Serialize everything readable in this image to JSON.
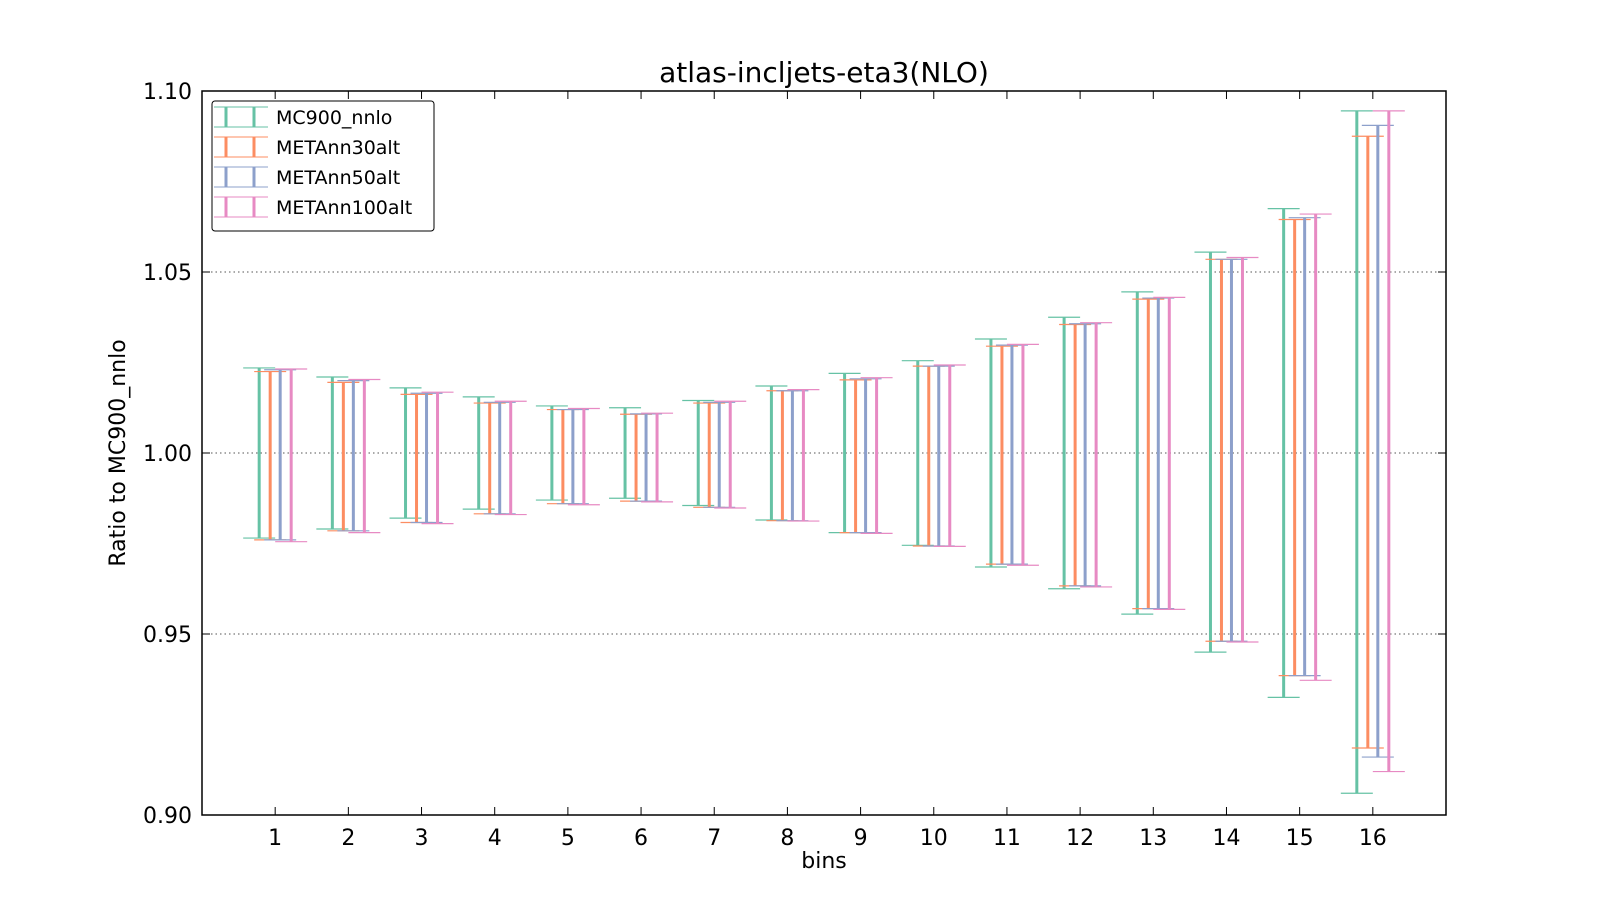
{
  "chart_data": {
    "type": "errorbar",
    "title": "atlas-incljets-eta3(NLO)",
    "xlabel": "bins",
    "ylabel": "Ratio to MC900_nnlo",
    "ylim": [
      0.9,
      1.1
    ],
    "yticks": [
      "0.90",
      "0.95",
      "1.00",
      "1.05",
      "1.10"
    ],
    "categories": [
      "1",
      "2",
      "3",
      "4",
      "5",
      "6",
      "7",
      "8",
      "9",
      "10",
      "11",
      "12",
      "13",
      "14",
      "15",
      "16"
    ],
    "grid": "horizontal dotted",
    "legend_position": "top-left",
    "series": [
      {
        "name": "MC900_nnlo",
        "color": "#66c2a5",
        "lower": [
          0.9765,
          0.979,
          0.982,
          0.9845,
          0.987,
          0.9875,
          0.9855,
          0.9815,
          0.978,
          0.9745,
          0.9685,
          0.9625,
          0.9555,
          0.945,
          0.9325,
          0.906
        ],
        "upper": [
          1.0235,
          1.021,
          1.018,
          1.0155,
          1.013,
          1.0125,
          1.0145,
          1.0185,
          1.022,
          1.0255,
          1.0315,
          1.0375,
          1.0445,
          1.0555,
          1.0675,
          1.0945
        ]
      },
      {
        "name": "METAnn30alt",
        "color": "#fc8d62",
        "lower": [
          0.976,
          0.9785,
          0.9808,
          0.9832,
          0.986,
          0.9867,
          0.985,
          0.9813,
          0.978,
          0.9743,
          0.9693,
          0.9633,
          0.957,
          0.948,
          0.9385,
          0.9185
        ],
        "upper": [
          1.0225,
          1.0195,
          1.0162,
          1.0138,
          1.012,
          1.0107,
          1.0138,
          1.0172,
          1.0202,
          1.024,
          1.0295,
          1.0355,
          1.0425,
          1.0535,
          1.0645,
          1.0875
        ]
      },
      {
        "name": "METAnn50alt",
        "color": "#8da0cb",
        "lower": [
          0.976,
          0.9785,
          0.9808,
          0.9832,
          0.986,
          0.9867,
          0.985,
          0.9813,
          0.978,
          0.9743,
          0.9693,
          0.9633,
          0.957,
          0.948,
          0.9385,
          0.916
        ],
        "upper": [
          1.023,
          1.02,
          1.0165,
          1.014,
          1.012,
          1.0108,
          1.014,
          1.0172,
          1.0205,
          1.024,
          1.0298,
          1.0357,
          1.0428,
          1.0535,
          1.065,
          1.0905
        ]
      },
      {
        "name": "METAnn100alt",
        "color": "#e78ac3",
        "lower": [
          0.9755,
          0.978,
          0.9805,
          0.983,
          0.9857,
          0.9865,
          0.9848,
          0.9812,
          0.9778,
          0.9742,
          0.969,
          0.963,
          0.9568,
          0.9478,
          0.9372,
          0.912
        ],
        "upper": [
          1.0232,
          1.0203,
          1.0168,
          1.0143,
          1.0123,
          1.011,
          1.0143,
          1.0175,
          1.0208,
          1.0243,
          1.03,
          1.036,
          1.043,
          1.054,
          1.066,
          1.0945
        ]
      }
    ]
  }
}
